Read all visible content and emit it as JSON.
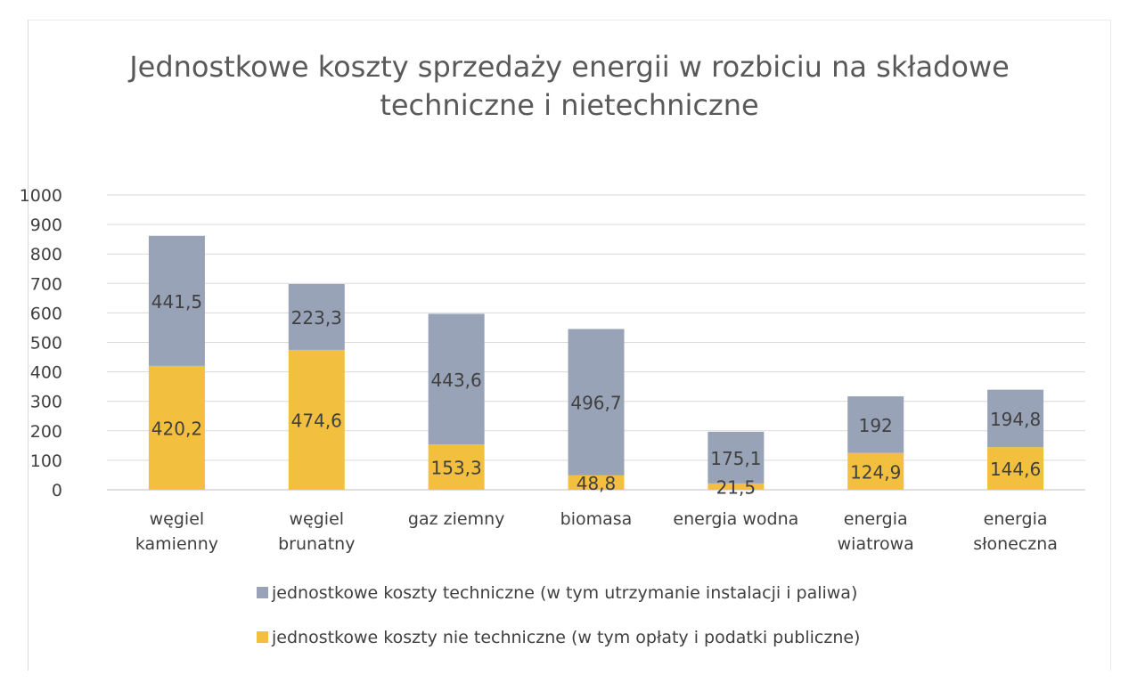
{
  "chart_data": {
    "type": "bar",
    "stacked": true,
    "title": "Jednostkowe koszty sprzedaży energii w rozbiciu na składowe techniczne i nietechniczne",
    "title_lines": [
      "Jednostkowe koszty sprzedaży energii w rozbiciu na składowe",
      "techniczne i nietechniczne"
    ],
    "categories": [
      [
        "węgiel",
        "kamienny"
      ],
      [
        "węgiel",
        "brunatny"
      ],
      [
        "gaz ziemny"
      ],
      [
        "biomasa"
      ],
      [
        "energia wodna"
      ],
      [
        "energia",
        "wiatrowa"
      ],
      [
        "energia",
        "słoneczna"
      ]
    ],
    "series": [
      {
        "name": "jednostkowe koszty nie techniczne (w tym opłaty i podatki publiczne)",
        "color": "#f2bf3f",
        "values": [
          420.2,
          474.6,
          153.3,
          48.8,
          21.5,
          124.9,
          144.6
        ],
        "labels": [
          "420,2",
          "474,6",
          "153,3",
          "48,8",
          "21,5",
          "124,9",
          "144,6"
        ]
      },
      {
        "name": "jednostkowe koszty techniczne (w tym utrzymanie instalacji i paliwa)",
        "color": "#98a3b8",
        "values": [
          441.5,
          223.3,
          443.6,
          496.7,
          175.1,
          192,
          194.8
        ],
        "labels": [
          "441,5",
          "223,3",
          "443,6",
          "496,7",
          "175,1",
          "192",
          "194,8"
        ]
      }
    ],
    "ylim": [
      0,
      1000
    ],
    "yticks": [
      "0",
      "100",
      "200",
      "300",
      "400",
      "500",
      "600",
      "700",
      "800",
      "900",
      "1000"
    ],
    "grid": true,
    "legend_position": "bottom",
    "legend_order": [
      1,
      0
    ]
  }
}
